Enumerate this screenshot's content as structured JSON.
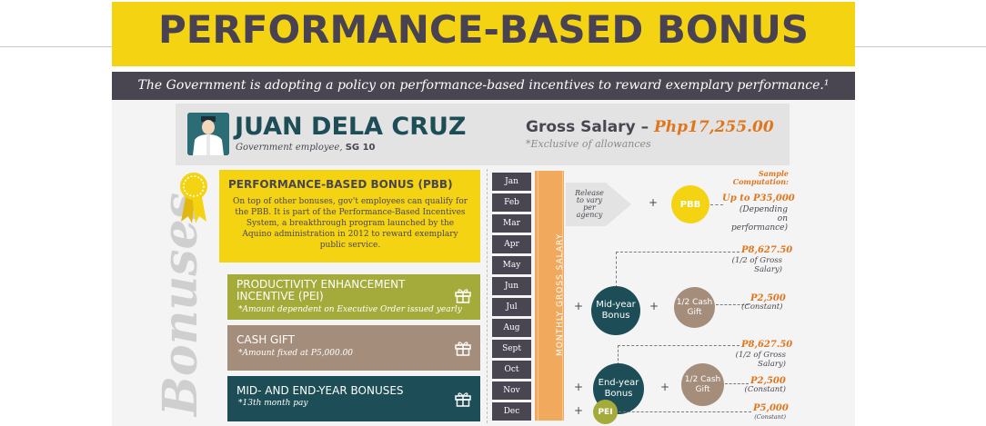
{
  "header": {
    "title": "PERFORMANCE-BASED BONUS",
    "subtitle": "The Government is adopting a policy on performance-based incentives to reward exemplary performance.¹"
  },
  "employee": {
    "name": "JUAN DELA CRUZ",
    "role_prefix": "Government employee, ",
    "grade": "SG 10",
    "gross_label": "Gross Salary – ",
    "gross_amount": "Php17,255.00",
    "gross_note": "*Exclusive of allowances"
  },
  "sidebar_label": "Bonuses",
  "bonuses": {
    "pbb": {
      "title": "PERFORMANCE-BASED BONUS (PBB)",
      "body": "On top of other bonuses, gov't employees can qualify for the PBB. It is part of the Performance-Based Incentives System, a breakthrough program launched by the Aquino administration in 2012 to reward exemplary public service."
    },
    "pei": {
      "title_line1": "PRODUCTIVITY ENHANCEMENT",
      "title_line2": "INCENTIVE (PEI)",
      "note": "*Amount dependent on Executive Order issued yearly"
    },
    "cash": {
      "title": "CASH GIFT",
      "note": "*Amount fixed at P5,000.00"
    },
    "midend": {
      "title": "MID- AND END-YEAR BONUSES",
      "note": "*13th month pay"
    }
  },
  "months": [
    "Jan",
    "Feb",
    "Mar",
    "Apr",
    "May",
    "Jun",
    "Jul",
    "Aug",
    "Sept",
    "Oct",
    "Nov",
    "Dec"
  ],
  "salary_bar_label": "MONTHLY GROSS SALARY",
  "computation": {
    "heading_line1": "Sample",
    "heading_line2": "Computation:",
    "release_line1": "Release",
    "release_line2": "to vary",
    "release_line3": "per agency",
    "pbb_circle": "PBB",
    "pbb_value": "Up to P35,000",
    "pbb_note_line1": "(Depending",
    "pbb_note_line2": "on performance)",
    "mid_circle_line1": "Mid-year",
    "mid_circle_line2": "Bonus",
    "mid_value": "P8,627.50",
    "mid_note": "(1/2 of Gross Salary)",
    "mid_cash_line1": "1/2 Cash",
    "mid_cash_line2": "Gift",
    "mid_cash_value": "P2,500",
    "mid_cash_note": "(Constant)",
    "end_circle_line1": "End-year",
    "end_circle_line2": "Bonus",
    "end_value": "P8,627.50",
    "end_note": "(1/2 of Gross Salary)",
    "end_cash_line1": "1/2 Cash",
    "end_cash_line2": "Gift",
    "end_cash_value": "P2,500",
    "end_cash_note": "(Constant)",
    "pei_circle": "PEI",
    "pei_value": "P5,000",
    "pei_note": "(Constant)",
    "plus": "+"
  },
  "colors": {
    "yellow": "#f4d312",
    "dark": "#4a4651",
    "teal": "#1d4d57",
    "green": "#a5ab3a",
    "brown": "#a58d7b",
    "orange": "#e0761c",
    "salary_bar": "#f1a95d"
  },
  "icons": {
    "gift": "gift-icon",
    "ribbon": "award-ribbon-icon",
    "avatar": "employee-avatar"
  }
}
